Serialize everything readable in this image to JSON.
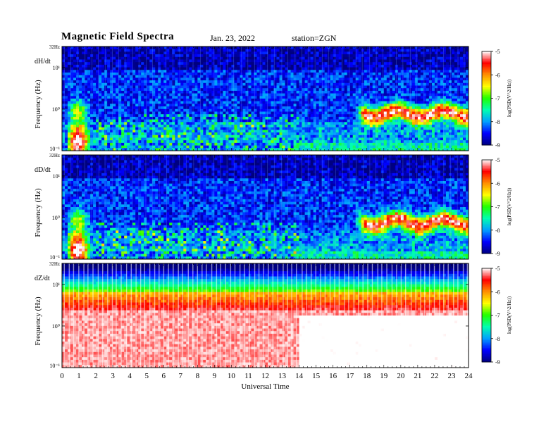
{
  "header": {
    "title": "Magnetic  Field  Spectra",
    "date": "Jan. 23, 2022",
    "station": "station=ZGN"
  },
  "chart_data": {
    "type": "heatmap",
    "xlabel": "Universal Time",
    "xlim": [
      0,
      24
    ],
    "x_ticks": [
      "0",
      "1",
      "2",
      "3",
      "4",
      "5",
      "6",
      "7",
      "8",
      "9",
      "10",
      "11",
      "12",
      "13",
      "14",
      "15",
      "16",
      "17",
      "18",
      "19",
      "20",
      "21",
      "22",
      "23",
      "24"
    ],
    "y_range_hz": [
      0.1,
      32
    ],
    "y_scale": "log",
    "colorbar": {
      "label": "log(PSD(V^2/Hz))",
      "range": [
        -9,
        -5
      ],
      "ticks": [
        "-5",
        "-6",
        "-7",
        "-8",
        "-9"
      ],
      "colormap": [
        "#000080",
        "#0000ff",
        "#00a0ff",
        "#00ffb0",
        "#20ff00",
        "#ffff00",
        "#ff9000",
        "#ff0000",
        "#ffffff"
      ]
    },
    "panels": [
      {
        "component": "dH/dt",
        "ylabel": "Frequency  (Hz)",
        "y_ticks": [
          "32Hz",
          "10¹",
          "10⁰",
          "10⁻¹"
        ],
        "features": {
          "background_level": -8.4,
          "low_freq_burst_hours": [
            0.3,
            1.6
          ],
          "hf_white_band_hours": [
            17.3,
            24
          ],
          "hf_white_band_hz": [
            0.45,
            1.3
          ]
        }
      },
      {
        "component": "dD/dt",
        "ylabel": "Frequency  (Hz)",
        "y_ticks": [
          "32Hz",
          "10¹",
          "10⁰",
          "10⁻¹"
        ],
        "features": {
          "background_level": -8.4,
          "low_freq_burst_hours": [
            0.3,
            1.6
          ],
          "hf_white_band_hours": [
            17.3,
            24
          ],
          "hf_white_band_hz": [
            0.45,
            1.3
          ]
        }
      },
      {
        "component": "dZ/dt",
        "ylabel": "Frequency  (Hz)",
        "y_ticks": [
          "32Hz",
          "10¹",
          "10⁰",
          "10⁻¹"
        ],
        "features": {
          "top_level": -8.8,
          "mid_level": -6.2,
          "low_level": -5.2,
          "gap_spacing_hours": 0.28
        }
      }
    ]
  }
}
